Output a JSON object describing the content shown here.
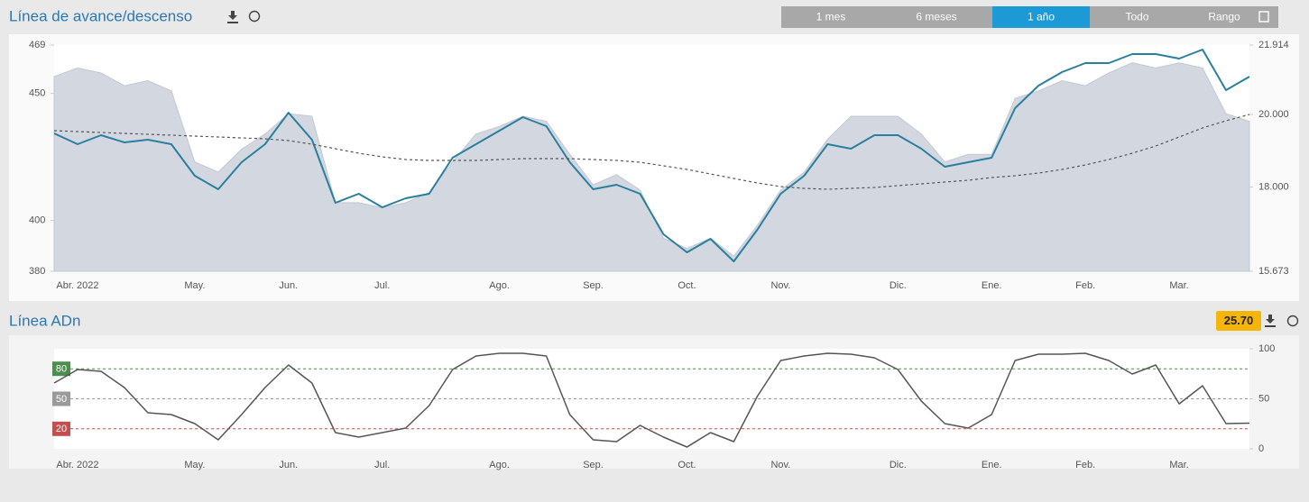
{
  "range_buttons": {
    "labels": [
      "1 mes",
      "6 meses",
      "1 año",
      "Todo",
      "Rango"
    ],
    "active": 2
  },
  "chart_data": [
    {
      "type": "line",
      "title": "Línea de avance/descenso",
      "categories": [
        null,
        "Abr. 2022",
        null,
        null,
        null,
        null,
        "May.",
        null,
        null,
        null,
        "Jun.",
        null,
        null,
        null,
        "Jul.",
        null,
        null,
        null,
        null,
        "Ago.",
        null,
        null,
        null,
        "Sep.",
        null,
        null,
        null,
        "Oct.",
        null,
        null,
        null,
        "Nov.",
        null,
        null,
        null,
        null,
        "Dic.",
        null,
        null,
        null,
        "Ene.",
        null,
        null,
        null,
        "Feb.",
        null,
        null,
        null,
        "Mar.",
        null,
        null,
        null
      ],
      "ylim": [
        380,
        469
      ],
      "yticks": [
        380,
        400,
        450,
        469
      ],
      "y2lim": [
        15673,
        21914
      ],
      "y2ticks": [
        {
          "value": 15673,
          "label": "15.673"
        },
        {
          "value": 18000,
          "label": "18.000"
        },
        {
          "value": 20000,
          "label": "20.000"
        },
        {
          "value": 21914,
          "label": "21.914"
        }
      ],
      "series": [
        {
          "style": "area",
          "color": "#d3d8e0",
          "axis": "y",
          "values": [
            456.6,
            460,
            458,
            453,
            455,
            451,
            423,
            419,
            428,
            434,
            442,
            441,
            407,
            407,
            405,
            407,
            411,
            423,
            434,
            437,
            441,
            439,
            426,
            414,
            418,
            412,
            393,
            389,
            393,
            386,
            398,
            412,
            419,
            432,
            441,
            441,
            441,
            434,
            423,
            426,
            426,
            448,
            451,
            455,
            453,
            458,
            462,
            460,
            462,
            460,
            442,
            439
          ]
        },
        {
          "style": "line",
          "color": "#2b7f9e",
          "axis": "y2",
          "values": [
            19477,
            19179,
            19427,
            19229,
            19303,
            19179,
            18309,
            17936,
            18682,
            19179,
            20049,
            19303,
            17563,
            17811,
            17438,
            17687,
            17811,
            18806,
            19179,
            19552,
            19925,
            19676,
            18682,
            17936,
            18060,
            17811,
            16692,
            16195,
            16568,
            15946,
            16817,
            17811,
            18309,
            19179,
            19055,
            19427,
            19427,
            19055,
            18557,
            18682,
            18806,
            20173,
            20795,
            21168,
            21417,
            21417,
            21665,
            21665,
            21541,
            21790,
            20671,
            21044
          ]
        },
        {
          "style": "dashed",
          "color": "#555555",
          "axis": "y2",
          "values": [
            19552,
            19527,
            19502,
            19477,
            19452,
            19427,
            19403,
            19378,
            19353,
            19328,
            19278,
            19179,
            19055,
            18930,
            18831,
            18756,
            18731,
            18731,
            18731,
            18756,
            18781,
            18781,
            18781,
            18756,
            18731,
            18682,
            18582,
            18483,
            18358,
            18234,
            18110,
            18010,
            17960,
            17936,
            17960,
            17985,
            18035,
            18085,
            18135,
            18184,
            18259,
            18309,
            18383,
            18483,
            18607,
            18756,
            18930,
            19129,
            19378,
            19626,
            19825,
            19999
          ]
        }
      ]
    },
    {
      "type": "line",
      "title": "Línea ADn",
      "badge": "25.70",
      "y_axis_side": "right",
      "categories": [
        null,
        "Abr. 2022",
        null,
        null,
        null,
        null,
        "May.",
        null,
        null,
        null,
        "Jun.",
        null,
        null,
        null,
        "Jul.",
        null,
        null,
        null,
        null,
        "Ago.",
        null,
        null,
        null,
        "Sep.",
        null,
        null,
        null,
        "Oct.",
        null,
        null,
        null,
        "Nov.",
        null,
        null,
        null,
        null,
        "Dic.",
        null,
        null,
        null,
        "Ene.",
        null,
        null,
        null,
        "Feb.",
        null,
        null,
        null,
        "Mar.",
        null,
        null,
        null
      ],
      "ylim": [
        0,
        100
      ],
      "yticks": [
        0,
        50,
        100
      ],
      "levels": [
        {
          "value": 80,
          "color": "#4b8f4e"
        },
        {
          "value": 50,
          "color": "#9a9a9a"
        },
        {
          "value": 20,
          "color": "#c0504d"
        }
      ],
      "series": [
        {
          "style": "line",
          "color": "#555555",
          "axis": "y",
          "values": [
            65.8,
            79.3,
            77.5,
            61.3,
            36,
            34.2,
            25.2,
            9,
            34.2,
            61.3,
            83.8,
            65.8,
            16.2,
            11.7,
            16.2,
            20.7,
            43.2,
            79.3,
            92.8,
            95.5,
            95.5,
            92.8,
            34.2,
            9,
            7.2,
            23.4,
            11.7,
            1.8,
            16.2,
            7.2,
            52.3,
            88.3,
            92.8,
            95.5,
            94.6,
            91,
            79.3,
            47.7,
            25.2,
            20.7,
            34.2,
            88.3,
            94.6,
            94.6,
            95.5,
            88.3,
            74.8,
            83.8,
            45,
            63.1,
            25.2,
            25.7
          ]
        }
      ]
    }
  ]
}
